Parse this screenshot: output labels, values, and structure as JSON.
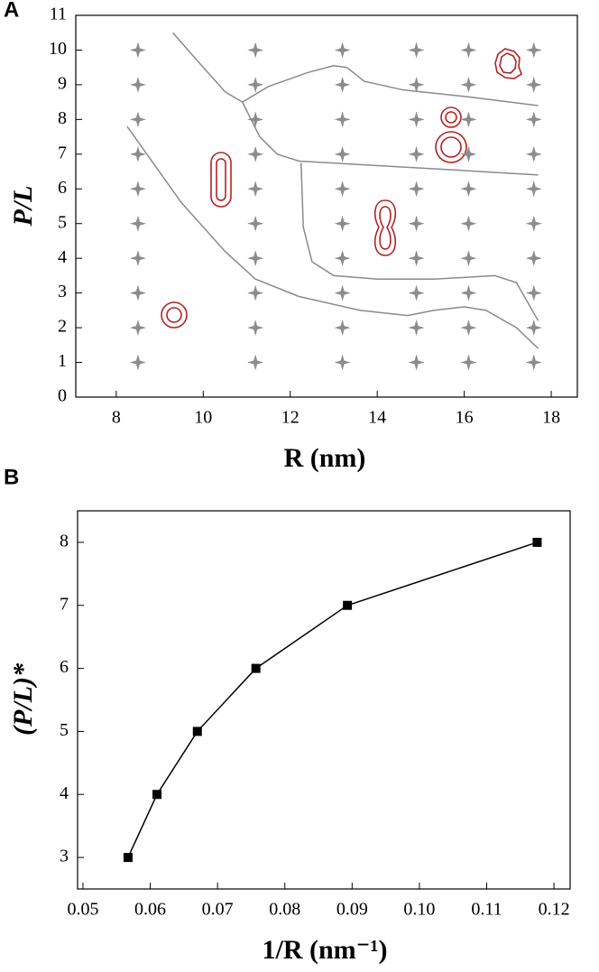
{
  "chart_data": [
    {
      "type": "scatter",
      "panel_label": "A",
      "x_label": "R (nm)",
      "y_label": "P/L",
      "xlim": [
        7.07,
        18.6
      ],
      "ylim": [
        0,
        11
      ],
      "xticks": [
        8,
        10,
        12,
        14,
        16,
        18
      ],
      "yticks": [
        0,
        1,
        2,
        3,
        4,
        5,
        6,
        7,
        8,
        9,
        10,
        11
      ],
      "points": {
        "color": "#8c8c8c",
        "x": [
          8.5,
          8.5,
          8.5,
          8.5,
          8.5,
          8.5,
          8.5,
          8.5,
          8.5,
          8.5,
          11.2,
          11.2,
          11.2,
          11.2,
          11.2,
          11.2,
          11.2,
          11.2,
          11.2,
          11.2,
          13.2,
          13.2,
          13.2,
          13.2,
          13.2,
          13.2,
          13.2,
          13.2,
          13.2,
          13.2,
          14.9,
          14.9,
          14.9,
          14.9,
          14.9,
          14.9,
          14.9,
          14.9,
          14.9,
          14.9,
          16.1,
          16.1,
          16.1,
          16.1,
          16.1,
          16.1,
          16.1,
          16.1,
          16.1,
          16.1,
          17.6,
          17.6,
          17.6,
          17.6,
          17.6,
          17.6,
          17.6,
          17.6,
          17.6,
          17.6
        ],
        "y": [
          1,
          2,
          3,
          4,
          5,
          6,
          7,
          8,
          9,
          10,
          1,
          2,
          3,
          4,
          5,
          6,
          7,
          8,
          9,
          10,
          1,
          2,
          3,
          4,
          5,
          6,
          7,
          8,
          9,
          10,
          1,
          2,
          3,
          4,
          5,
          6,
          7,
          8,
          9,
          10,
          1,
          2,
          3,
          4,
          5,
          6,
          7,
          8,
          9,
          10,
          1,
          2,
          3,
          4,
          5,
          6,
          7,
          8,
          9,
          10
        ]
      },
      "boundaries": [
        {
          "color": "#8a8a8a",
          "x": [
            8.25,
            9.5,
            10.5,
            11.2,
            12.2,
            13.6,
            14.7,
            15.3,
            16.0,
            16.5,
            17.2,
            17.7
          ],
          "y": [
            7.8,
            5.6,
            4.2,
            3.4,
            2.9,
            2.5,
            2.35,
            2.5,
            2.6,
            2.5,
            2.0,
            1.4
          ]
        },
        {
          "color": "#8a8a8a",
          "x": [
            9.3,
            10.0,
            10.5,
            10.9,
            11.5,
            12.4,
            13.0,
            13.3,
            13.7,
            14.6,
            16.1,
            17.7
          ],
          "y": [
            10.5,
            9.5,
            8.8,
            8.5,
            8.95,
            9.35,
            9.55,
            9.5,
            9.1,
            8.85,
            8.65,
            8.4
          ]
        },
        {
          "color": "#8a8a8a",
          "x": [
            10.9,
            11.3,
            11.7,
            12.2,
            13.6,
            15.7,
            17.7
          ],
          "y": [
            8.5,
            7.5,
            7.0,
            6.8,
            6.7,
            6.55,
            6.4
          ]
        },
        {
          "color": "#8a8a8a",
          "x": [
            12.25,
            12.3,
            12.5,
            13.0,
            14.0,
            15.3,
            16.7,
            17.2,
            17.7
          ],
          "y": [
            6.75,
            4.9,
            3.9,
            3.5,
            3.4,
            3.4,
            3.5,
            3.3,
            2.2
          ]
        }
      ]
    },
    {
      "type": "line",
      "panel_label": "B",
      "x_label": "1/R (nm⁻¹)",
      "y_label": "(P/L)*",
      "xlim": [
        0.0492,
        0.1224
      ],
      "ylim": [
        2.5,
        8.5
      ],
      "xticks": [
        0.05,
        0.06,
        0.07,
        0.08,
        0.09,
        {
          "value": 0.1,
          "label": "0.10"
        },
        0.11,
        0.12
      ],
      "yticks": [
        3,
        4,
        5,
        6,
        7,
        8
      ],
      "color": "#000000",
      "x": [
        0.0567,
        0.061,
        0.067,
        0.0757,
        0.0893,
        0.1175
      ],
      "values": [
        3,
        4,
        5,
        6,
        7,
        8
      ]
    }
  ]
}
